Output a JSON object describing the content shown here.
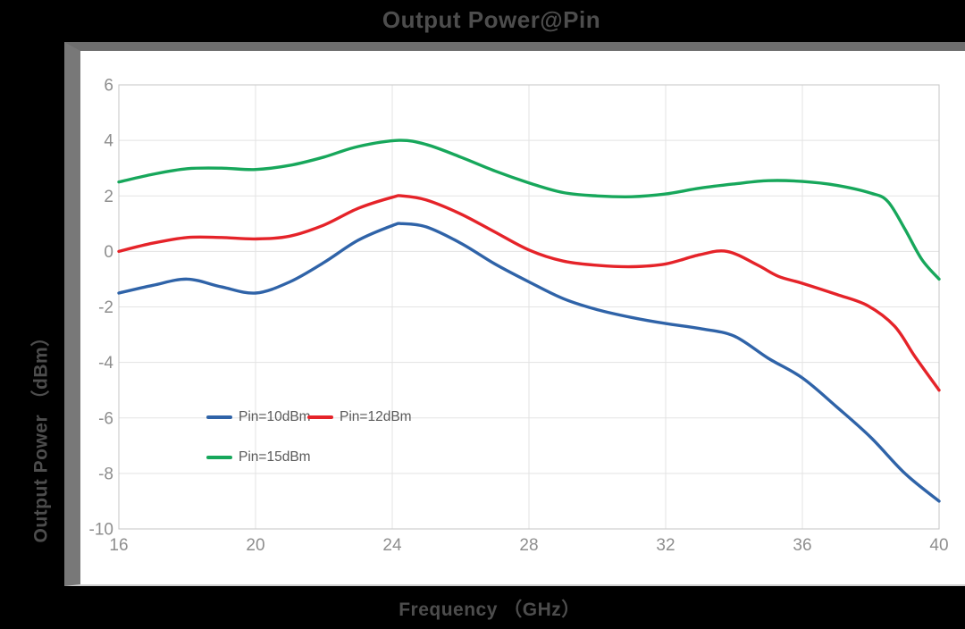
{
  "chart": {
    "title": "Output Power@Pin"
  },
  "chart_data": {
    "type": "line",
    "title": "Output Power@Pin",
    "xlabel": "Frequency （GHz）",
    "ylabel": "Output Power （dBm）",
    "xlim": [
      16,
      40
    ],
    "ylim": [
      -10,
      6
    ],
    "xticks": [
      16,
      20,
      24,
      28,
      32,
      36,
      40
    ],
    "yticks": [
      6,
      4,
      2,
      0,
      -2,
      -4,
      -6,
      -8,
      -10
    ],
    "grid": true,
    "legend_position": "inside-bottom-left",
    "styles": {
      "grid_color": "#e3e3e3",
      "border_color": "#c6c6c6",
      "tick_label_color": "#8e8e8e",
      "plot_background": "#ffffff",
      "page_background": "#000000",
      "line_width": 3.4
    },
    "series": [
      {
        "id": "pin10",
        "name": "Pin=10dBm",
        "color": "#2f63a8",
        "points": [
          [
            16,
            -1.5
          ],
          [
            17,
            -1.22
          ],
          [
            18,
            -1.0
          ],
          [
            19,
            -1.28
          ],
          [
            20,
            -1.5
          ],
          [
            21,
            -1.1
          ],
          [
            22,
            -0.4
          ],
          [
            23,
            0.4
          ],
          [
            24,
            0.93
          ],
          [
            24.3,
            1.0
          ],
          [
            25,
            0.88
          ],
          [
            26,
            0.3
          ],
          [
            27,
            -0.45
          ],
          [
            28,
            -1.1
          ],
          [
            29,
            -1.7
          ],
          [
            30,
            -2.1
          ],
          [
            31,
            -2.38
          ],
          [
            32,
            -2.6
          ],
          [
            33,
            -2.78
          ],
          [
            34,
            -3.05
          ],
          [
            35,
            -3.85
          ],
          [
            36,
            -4.56
          ],
          [
            37,
            -5.6
          ],
          [
            38,
            -6.7
          ],
          [
            39,
            -8.0
          ],
          [
            40,
            -9.0
          ]
        ]
      },
      {
        "id": "pin12",
        "name": "Pin=12dBm",
        "color": "#e52329",
        "points": [
          [
            16,
            0.0
          ],
          [
            17,
            0.3
          ],
          [
            18,
            0.5
          ],
          [
            19,
            0.5
          ],
          [
            20,
            0.45
          ],
          [
            21,
            0.55
          ],
          [
            22,
            0.95
          ],
          [
            23,
            1.55
          ],
          [
            24,
            1.95
          ],
          [
            24.3,
            2.0
          ],
          [
            25,
            1.85
          ],
          [
            26,
            1.35
          ],
          [
            27,
            0.7
          ],
          [
            28,
            0.05
          ],
          [
            29,
            -0.35
          ],
          [
            30,
            -0.5
          ],
          [
            31,
            -0.55
          ],
          [
            32,
            -0.45
          ],
          [
            33,
            -0.12
          ],
          [
            33.8,
            0.0
          ],
          [
            34.7,
            -0.5
          ],
          [
            35.3,
            -0.9
          ],
          [
            36,
            -1.15
          ],
          [
            37,
            -1.55
          ],
          [
            37.9,
            -1.95
          ],
          [
            38.7,
            -2.7
          ],
          [
            39.3,
            -3.8
          ],
          [
            40,
            -5.0
          ]
        ]
      },
      {
        "id": "pin15",
        "name": "Pin=15dBm",
        "color": "#17a75b",
        "points": [
          [
            16,
            2.5
          ],
          [
            17,
            2.78
          ],
          [
            18,
            2.98
          ],
          [
            19,
            3.0
          ],
          [
            20,
            2.95
          ],
          [
            21,
            3.1
          ],
          [
            22,
            3.4
          ],
          [
            23,
            3.78
          ],
          [
            24.2,
            4.0
          ],
          [
            25,
            3.85
          ],
          [
            26,
            3.4
          ],
          [
            27,
            2.9
          ],
          [
            28,
            2.47
          ],
          [
            29,
            2.12
          ],
          [
            30,
            2.0
          ],
          [
            31,
            1.97
          ],
          [
            32,
            2.07
          ],
          [
            33,
            2.28
          ],
          [
            34,
            2.43
          ],
          [
            35,
            2.55
          ],
          [
            36,
            2.52
          ],
          [
            37,
            2.38
          ],
          [
            38,
            2.1
          ],
          [
            38.5,
            1.8
          ],
          [
            39,
            0.8
          ],
          [
            39.5,
            -0.3
          ],
          [
            40,
            -1.0
          ]
        ]
      }
    ]
  }
}
